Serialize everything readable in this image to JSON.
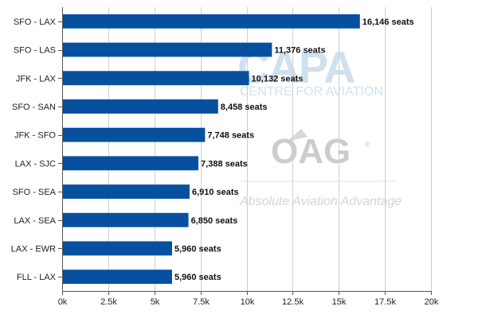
{
  "chart_data": {
    "type": "bar",
    "orientation": "horizontal",
    "categories": [
      "SFO - LAX",
      "SFO - LAS",
      "JFK - LAX",
      "SFO - SAN",
      "JFK - SFO",
      "LAX - SJC",
      "SFO - SEA",
      "LAX - SEA",
      "LAX - EWR",
      "FLL - LAX"
    ],
    "values": [
      16146,
      11376,
      10132,
      8458,
      7748,
      7388,
      6910,
      6850,
      5960,
      5960
    ],
    "data_labels": [
      "16,146 seats",
      "11,376 seats",
      "10,132 seats",
      "8,458 seats",
      "7,748 seats",
      "7,388 seats",
      "6,910 seats",
      "6,850 seats",
      "5,960 seats",
      "5,960 seats"
    ],
    "xlim": [
      0,
      20000
    ],
    "x_ticks": [
      0,
      2500,
      5000,
      7500,
      10000,
      12500,
      15000,
      17500,
      20000
    ],
    "x_tick_labels": [
      "0k",
      "2.5k",
      "5k",
      "7.5k",
      "10k",
      "12.5k",
      "15k",
      "17.5k",
      "20k"
    ],
    "title": "",
    "xlabel": "",
    "ylabel": "",
    "grid": "vertical",
    "legend": "none",
    "bar_color": "#0750a0"
  },
  "watermarks": {
    "capa_logo": "CAPA",
    "capa_tagline": "CENTRE FOR AVIATION",
    "oag_logo": "OAG",
    "oag_tagline": "Absolute Aviation Advantage"
  },
  "colors": {
    "grid": "#cfcfcf",
    "axis": "#555555",
    "capa_watermark": "#cfe0ee",
    "oag_watermark": "#cccccc"
  }
}
